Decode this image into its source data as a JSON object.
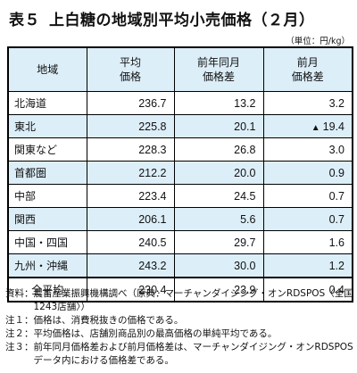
{
  "title": {
    "number": "表５",
    "text": "上白糖の地域別平均小売価格（２月）"
  },
  "unit": "（単位：円/kg）",
  "table": {
    "headers": [
      "地域",
      "平均\n価格",
      "前年同月\n価格差",
      "前月\n価格差"
    ],
    "rows": [
      {
        "region": "北海道",
        "price": "236.7",
        "yoy": "13.2",
        "mom": "3.2",
        "mom_neg": false
      },
      {
        "region": "東北",
        "price": "225.8",
        "yoy": "20.1",
        "mom": "19.4",
        "mom_neg": true
      },
      {
        "region": "関東など",
        "price": "228.3",
        "yoy": "26.8",
        "mom": "3.0",
        "mom_neg": false
      },
      {
        "region": "首都圏",
        "price": "212.2",
        "yoy": "20.0",
        "mom": "0.9",
        "mom_neg": false
      },
      {
        "region": "中部",
        "price": "223.4",
        "yoy": "24.5",
        "mom": "0.7",
        "mom_neg": false
      },
      {
        "region": "関西",
        "price": "206.1",
        "yoy": "5.6",
        "mom": "0.7",
        "mom_neg": false
      },
      {
        "region": "中国・四国",
        "price": "240.5",
        "yoy": "29.7",
        "mom": "1.6",
        "mom_neg": false
      },
      {
        "region": "九州・沖縄",
        "price": "243.2",
        "yoy": "30.0",
        "mom": "1.2",
        "mom_neg": false
      },
      {
        "region": "全平均",
        "price": "230.4",
        "yoy": "23.9",
        "mom": "0.4",
        "mom_neg": false
      }
    ],
    "negative_marker": "▲"
  },
  "notes": [
    {
      "label": "資料：",
      "text": "農畜産業振興機構調べ（原典：マーチャンダイジング・オンRDSPOS〈全国1243店舗〉）"
    },
    {
      "label": "注１：",
      "text": "価格は、消費税抜きの価格である。"
    },
    {
      "label": "注２：",
      "text": "平均価格は、店舗別商品別の最高価格の単純平均である。"
    },
    {
      "label": "注３：",
      "text": "前年同月価格差および前月価格差は、マーチャンダイジング・オンRDSPOSデータ内における価格差である。"
    }
  ]
}
